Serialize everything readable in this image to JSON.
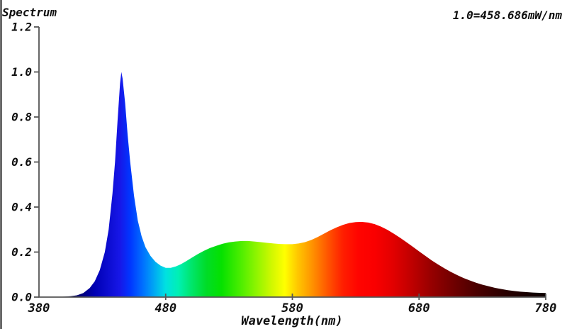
{
  "header": {
    "title": "Spectrum",
    "scale_note": "1.0=458.686mW/nm"
  },
  "axes": {
    "x_label": "Wavelength(nm)",
    "x_tick_values": [
      380,
      480,
      580,
      680,
      780
    ],
    "x_tick_labels": [
      "380",
      "480",
      "580",
      "680",
      "780"
    ],
    "y_tick_values": [
      0.0,
      0.2,
      0.4,
      0.6,
      0.8,
      1.0,
      1.2
    ],
    "y_tick_labels": [
      "0.0",
      "0.2",
      "0.4",
      "0.6",
      "0.8",
      "1.0",
      "1.2"
    ],
    "axis_color": "#565656",
    "tick_color": "#565656",
    "text_color": "#0e0e0e"
  },
  "chart_data": {
    "type": "area",
    "title": "Spectrum",
    "annotation": "1.0=458.686mW/nm",
    "xlabel": "Wavelength(nm)",
    "ylabel": "",
    "xlim": [
      380,
      780
    ],
    "ylim": [
      0,
      1.2
    ],
    "grid": false,
    "legend": false,
    "x_unit": "nm",
    "y_unit": "relative power (1.0 = 458.686 mW/nm)",
    "points": [
      [
        380,
        0.0
      ],
      [
        395,
        0.001
      ],
      [
        400,
        0.002
      ],
      [
        405,
        0.004
      ],
      [
        410,
        0.008
      ],
      [
        415,
        0.018
      ],
      [
        420,
        0.04
      ],
      [
        424,
        0.07
      ],
      [
        428,
        0.12
      ],
      [
        432,
        0.2
      ],
      [
        435,
        0.3
      ],
      [
        438,
        0.46
      ],
      [
        440,
        0.6
      ],
      [
        442,
        0.78
      ],
      [
        444,
        0.95
      ],
      [
        445,
        1.0
      ],
      [
        446,
        0.97
      ],
      [
        448,
        0.86
      ],
      [
        450,
        0.72
      ],
      [
        452,
        0.6
      ],
      [
        455,
        0.45
      ],
      [
        458,
        0.34
      ],
      [
        461,
        0.27
      ],
      [
        464,
        0.222
      ],
      [
        468,
        0.183
      ],
      [
        472,
        0.157
      ],
      [
        476,
        0.14
      ],
      [
        480,
        0.13
      ],
      [
        484,
        0.13
      ],
      [
        488,
        0.136
      ],
      [
        492,
        0.146
      ],
      [
        496,
        0.159
      ],
      [
        500,
        0.173
      ],
      [
        505,
        0.19
      ],
      [
        510,
        0.205
      ],
      [
        515,
        0.218
      ],
      [
        520,
        0.228
      ],
      [
        525,
        0.237
      ],
      [
        530,
        0.243
      ],
      [
        535,
        0.247
      ],
      [
        540,
        0.249
      ],
      [
        545,
        0.249
      ],
      [
        550,
        0.247
      ],
      [
        555,
        0.244
      ],
      [
        560,
        0.241
      ],
      [
        565,
        0.238
      ],
      [
        570,
        0.236
      ],
      [
        575,
        0.235
      ],
      [
        580,
        0.235
      ],
      [
        585,
        0.238
      ],
      [
        590,
        0.244
      ],
      [
        595,
        0.254
      ],
      [
        600,
        0.267
      ],
      [
        605,
        0.282
      ],
      [
        610,
        0.297
      ],
      [
        615,
        0.31
      ],
      [
        620,
        0.321
      ],
      [
        625,
        0.329
      ],
      [
        630,
        0.333
      ],
      [
        635,
        0.334
      ],
      [
        640,
        0.331
      ],
      [
        645,
        0.324
      ],
      [
        650,
        0.313
      ],
      [
        655,
        0.299
      ],
      [
        660,
        0.282
      ],
      [
        665,
        0.264
      ],
      [
        670,
        0.244
      ],
      [
        675,
        0.224
      ],
      [
        680,
        0.203
      ],
      [
        685,
        0.183
      ],
      [
        690,
        0.163
      ],
      [
        695,
        0.145
      ],
      [
        700,
        0.128
      ],
      [
        705,
        0.112
      ],
      [
        710,
        0.098
      ],
      [
        715,
        0.085
      ],
      [
        720,
        0.074
      ],
      [
        725,
        0.064
      ],
      [
        730,
        0.055
      ],
      [
        735,
        0.048
      ],
      [
        740,
        0.041
      ],
      [
        745,
        0.036
      ],
      [
        750,
        0.031
      ],
      [
        755,
        0.027
      ],
      [
        760,
        0.024
      ],
      [
        765,
        0.022
      ],
      [
        770,
        0.02
      ],
      [
        775,
        0.019
      ],
      [
        780,
        0.018
      ]
    ],
    "spectrum_gradient_stops": [
      [
        380,
        "#000014"
      ],
      [
        404,
        "#000046"
      ],
      [
        424,
        "#0000b4"
      ],
      [
        444,
        "#1717e8"
      ],
      [
        452,
        "#0036ff"
      ],
      [
        462,
        "#0070ff"
      ],
      [
        470,
        "#00a2f5"
      ],
      [
        480,
        "#00e1e1"
      ],
      [
        490,
        "#00f0b4"
      ],
      [
        500,
        "#00e66e"
      ],
      [
        512,
        "#00dc28"
      ],
      [
        524,
        "#05e100"
      ],
      [
        540,
        "#50ee00"
      ],
      [
        553,
        "#96f500"
      ],
      [
        564,
        "#d2f800"
      ],
      [
        574,
        "#ffff00"
      ],
      [
        584,
        "#ffc800"
      ],
      [
        596,
        "#ff9100"
      ],
      [
        608,
        "#ff5500"
      ],
      [
        620,
        "#ff1e00"
      ],
      [
        632,
        "#ff0400"
      ],
      [
        645,
        "#fa0000"
      ],
      [
        660,
        "#e10000"
      ],
      [
        675,
        "#bd0000"
      ],
      [
        690,
        "#960000"
      ],
      [
        708,
        "#6e0000"
      ],
      [
        725,
        "#4b0000"
      ],
      [
        745,
        "#2d0000"
      ],
      [
        765,
        "#160000"
      ],
      [
        780,
        "#0d0000"
      ]
    ]
  },
  "window": {
    "left_border_color": "#4a4a4a"
  }
}
